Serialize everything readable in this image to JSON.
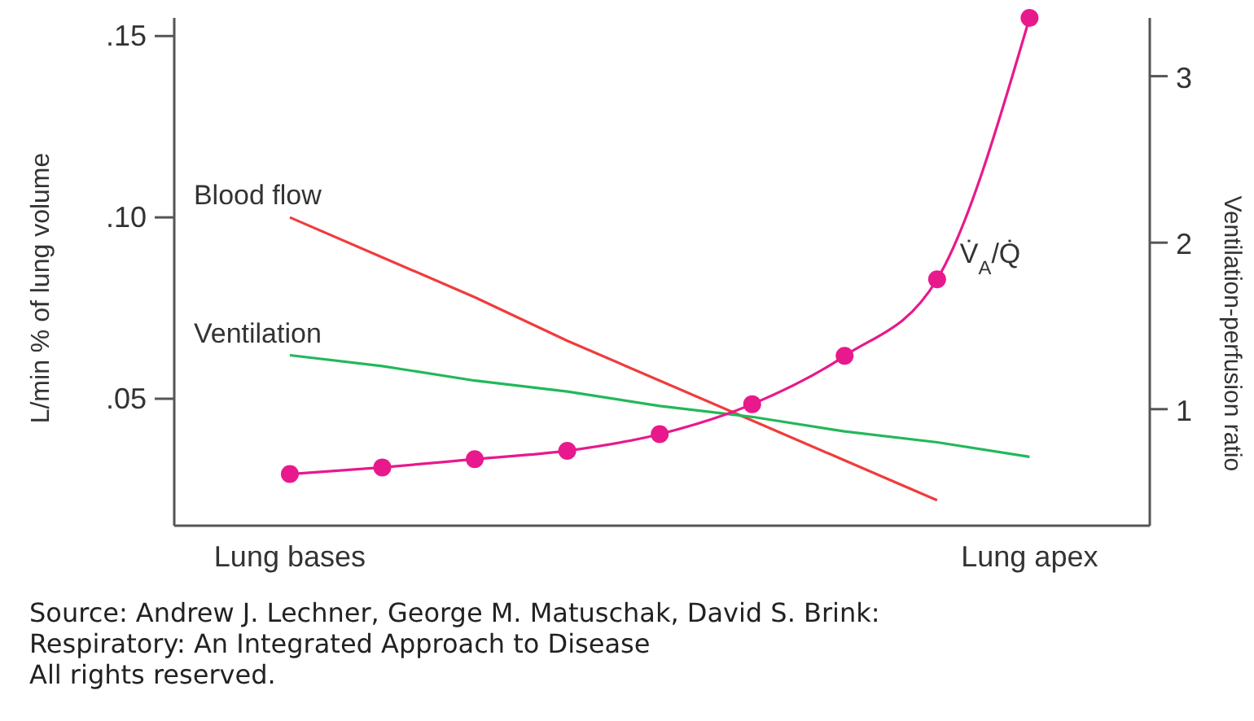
{
  "chart_data": {
    "type": "line",
    "ylabel": "L/min % of lung volume",
    "y2label": "Ventilation-perfusion ratio",
    "categories": [
      "Lung bases",
      null,
      null,
      null,
      null,
      null,
      null,
      null,
      "Lung apex"
    ],
    "ylim": [
      0.015,
      0.155
    ],
    "yticks": [
      {
        "value": 0.05,
        "label": ".05"
      },
      {
        "value": 0.1,
        "label": ".10"
      },
      {
        "value": 0.15,
        "label": ".15"
      }
    ],
    "y2lim": [
      0.3,
      3.35
    ],
    "y2ticks": [
      1,
      2,
      3
    ],
    "grid": false,
    "series": [
      {
        "name": "Blood flow",
        "color": "#f03c3c",
        "values": [
          0.1,
          0.089,
          0.078,
          0.066,
          0.055,
          0.044,
          0.033,
          0.022,
          null
        ],
        "marker": "none"
      },
      {
        "name": "Ventilation",
        "color": "#22b85a",
        "values": [
          0.062,
          0.059,
          0.055,
          0.052,
          0.048,
          0.045,
          0.041,
          0.038,
          0.034
        ],
        "marker": "none"
      },
      {
        "name": "V̇$_{A}$/Q̇",
        "color": "#e8198c",
        "axis": "y2",
        "marker": "circle",
        "values": [
          0.61,
          0.65,
          0.7,
          0.75,
          0.85,
          1.03,
          1.32,
          1.78,
          3.35
        ]
      }
    ],
    "annotations": [
      "Source: Andrew J. Lechner, George M. Matuschak, David S. Brink:",
      "Respiratory: An Integrated Approach to Disease",
      "All rights reserved."
    ]
  }
}
